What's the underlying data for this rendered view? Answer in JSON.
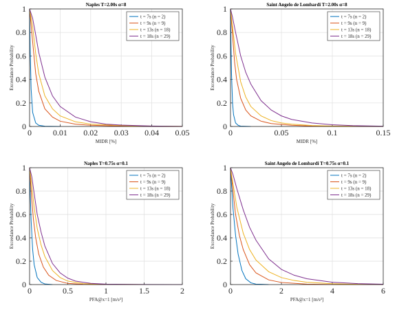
{
  "legend_labels": [
    "t = 7s (n = 2)",
    "t = 9s (n = 9)",
    "t = 13s (n = 18)",
    "t = 18s (n = 29)"
  ],
  "series_colors": [
    "#0072BD",
    "#D95319",
    "#EDB120",
    "#7E2F8E"
  ],
  "chart_data": [
    {
      "type": "line",
      "title": "Naples T=2.00s α=8",
      "xlabel": "MIDR [%]",
      "ylabel": "Exceedance Probability",
      "xlim": [
        0,
        0.05
      ],
      "ylim": [
        0,
        1
      ],
      "xticks": [
        "0",
        "0.01",
        "0.02",
        "0.03",
        "0.04",
        "0.05"
      ],
      "yticks": [
        "0",
        "0.2",
        "0.4",
        "0.6",
        "0.8",
        "1"
      ],
      "grid": true,
      "legend": "top-right",
      "series": [
        {
          "name": "t = 7s (n = 2)",
          "x": [
            0,
            0.0002,
            0.0005,
            0.001,
            0.002,
            0.003,
            0.005,
            0.01
          ],
          "y": [
            1,
            0.65,
            0.32,
            0.12,
            0.03,
            0.01,
            0.002,
            0
          ]
        },
        {
          "name": "t = 9s (n = 9)",
          "x": [
            0,
            0.001,
            0.002,
            0.003,
            0.005,
            0.0075,
            0.01,
            0.015,
            0.02,
            0.03,
            0.05
          ],
          "y": [
            1,
            0.72,
            0.45,
            0.3,
            0.15,
            0.08,
            0.045,
            0.02,
            0.01,
            0.003,
            0
          ]
        },
        {
          "name": "t = 13s (n = 18)",
          "x": [
            0,
            0.001,
            0.002,
            0.003,
            0.005,
            0.0075,
            0.01,
            0.015,
            0.02,
            0.03,
            0.04,
            0.05
          ],
          "y": [
            1,
            0.85,
            0.62,
            0.45,
            0.26,
            0.15,
            0.09,
            0.04,
            0.02,
            0.008,
            0.003,
            0.001
          ]
        },
        {
          "name": "t = 18s (n = 29)",
          "x": [
            0,
            0.001,
            0.002,
            0.003,
            0.005,
            0.0075,
            0.01,
            0.015,
            0.02,
            0.025,
            0.03,
            0.04,
            0.05
          ],
          "y": [
            1,
            0.92,
            0.78,
            0.63,
            0.42,
            0.26,
            0.17,
            0.08,
            0.04,
            0.02,
            0.012,
            0.004,
            0.001
          ]
        }
      ]
    },
    {
      "type": "line",
      "title": "Saint Angelo de Lombardi T=2.00s α=8",
      "xlabel": "MIDR [%]",
      "ylabel": "Exceedance Probability",
      "xlim": [
        0,
        0.15
      ],
      "ylim": [
        0,
        1
      ],
      "xticks": [
        "0",
        "0.05",
        "0.1",
        "0.15"
      ],
      "yticks": [
        "0",
        "0.2",
        "0.4",
        "0.6",
        "0.8",
        "1"
      ],
      "grid": true,
      "legend": "top-right",
      "series": [
        {
          "name": "t = 7s (n = 2)",
          "x": [
            0,
            0.0005,
            0.001,
            0.002,
            0.003,
            0.005,
            0.0075,
            0.01,
            0.02
          ],
          "y": [
            1,
            0.7,
            0.45,
            0.2,
            0.1,
            0.03,
            0.01,
            0.003,
            0
          ]
        },
        {
          "name": "t = 9s (n = 9)",
          "x": [
            0,
            0.002,
            0.004,
            0.006,
            0.01,
            0.015,
            0.02,
            0.03,
            0.04,
            0.06,
            0.08,
            0.1,
            0.15
          ],
          "y": [
            1,
            0.78,
            0.55,
            0.4,
            0.24,
            0.14,
            0.09,
            0.045,
            0.025,
            0.01,
            0.004,
            0.002,
            0
          ]
        },
        {
          "name": "t = 13s (n = 18)",
          "x": [
            0,
            0.002,
            0.005,
            0.01,
            0.015,
            0.02,
            0.03,
            0.04,
            0.05,
            0.06,
            0.08,
            0.1,
            0.15
          ],
          "y": [
            1,
            0.85,
            0.62,
            0.38,
            0.25,
            0.17,
            0.09,
            0.05,
            0.03,
            0.02,
            0.008,
            0.004,
            0
          ]
        },
        {
          "name": "t = 18s (n = 29)",
          "x": [
            0,
            0.002,
            0.005,
            0.01,
            0.015,
            0.02,
            0.03,
            0.04,
            0.05,
            0.06,
            0.08,
            0.1,
            0.12,
            0.15
          ],
          "y": [
            1,
            0.93,
            0.8,
            0.6,
            0.46,
            0.36,
            0.22,
            0.14,
            0.09,
            0.06,
            0.03,
            0.015,
            0.007,
            0.002
          ]
        }
      ]
    },
    {
      "type": "line",
      "title": "Naples T=0.75s α=0.1",
      "xlabel": "PFA@x=1 [m/s²]",
      "ylabel": "Exceedance Probability",
      "xlim": [
        0,
        2
      ],
      "ylim": [
        0,
        1
      ],
      "xticks": [
        "0",
        "0.5",
        "1",
        "1.5",
        "2"
      ],
      "yticks": [
        "0",
        "0.2",
        "0.4",
        "0.6",
        "0.8",
        "1"
      ],
      "grid": true,
      "legend": "top-right",
      "series": [
        {
          "name": "t = 7s (n = 2)",
          "x": [
            0,
            0.01,
            0.02,
            0.04,
            0.06,
            0.1,
            0.15,
            0.2,
            0.3
          ],
          "y": [
            1,
            0.75,
            0.55,
            0.3,
            0.17,
            0.06,
            0.02,
            0.005,
            0
          ]
        },
        {
          "name": "t = 9s (n = 9)",
          "x": [
            0,
            0.02,
            0.05,
            0.08,
            0.12,
            0.18,
            0.25,
            0.35,
            0.5,
            0.7,
            1
          ],
          "y": [
            1,
            0.8,
            0.56,
            0.4,
            0.26,
            0.15,
            0.08,
            0.035,
            0.01,
            0.002,
            0
          ]
        },
        {
          "name": "t = 13s (n = 18)",
          "x": [
            0,
            0.03,
            0.06,
            0.1,
            0.15,
            0.2,
            0.3,
            0.4,
            0.5,
            0.7,
            1,
            1.5
          ],
          "y": [
            1,
            0.84,
            0.66,
            0.48,
            0.34,
            0.24,
            0.12,
            0.06,
            0.03,
            0.008,
            0.002,
            0
          ]
        },
        {
          "name": "t = 18s (n = 29)",
          "x": [
            0,
            0.03,
            0.06,
            0.1,
            0.15,
            0.2,
            0.3,
            0.4,
            0.5,
            0.6,
            0.8,
            1,
            1.5,
            2
          ],
          "y": [
            1,
            0.92,
            0.78,
            0.6,
            0.45,
            0.33,
            0.18,
            0.1,
            0.055,
            0.03,
            0.01,
            0.004,
            0.001,
            0
          ]
        }
      ]
    },
    {
      "type": "line",
      "title": "Saint Angelo de Lombardi T=0.75s α=0.1",
      "xlabel": "PFA@x=1 [m/s²]",
      "ylabel": "Exceedance Probability",
      "xlim": [
        0,
        6
      ],
      "ylim": [
        0,
        1
      ],
      "xticks": [
        "0",
        "2",
        "4",
        "6"
      ],
      "yticks": [
        "0",
        "0.2",
        "0.4",
        "0.6",
        "0.8",
        "1"
      ],
      "grid": true,
      "legend": "top-right",
      "series": [
        {
          "name": "t = 7s (n = 2)",
          "x": [
            0,
            0.05,
            0.1,
            0.2,
            0.3,
            0.45,
            0.6,
            0.8,
            1,
            1.5
          ],
          "y": [
            1,
            0.82,
            0.65,
            0.42,
            0.26,
            0.12,
            0.05,
            0.015,
            0.004,
            0
          ]
        },
        {
          "name": "t = 9s (n = 9)",
          "x": [
            0,
            0.1,
            0.2,
            0.35,
            0.5,
            0.75,
            1,
            1.5,
            2,
            3,
            4,
            6
          ],
          "y": [
            1,
            0.8,
            0.6,
            0.42,
            0.3,
            0.17,
            0.1,
            0.04,
            0.018,
            0.004,
            0.001,
            0
          ]
        },
        {
          "name": "t = 13s (n = 18)",
          "x": [
            0,
            0.1,
            0.25,
            0.5,
            0.75,
            1,
            1.5,
            2,
            2.5,
            3,
            4,
            5,
            6
          ],
          "y": [
            1,
            0.86,
            0.66,
            0.44,
            0.3,
            0.21,
            0.11,
            0.06,
            0.035,
            0.02,
            0.007,
            0.002,
            0
          ]
        },
        {
          "name": "t = 18s (n = 29)",
          "x": [
            0,
            0.1,
            0.25,
            0.5,
            0.75,
            1,
            1.5,
            2,
            2.5,
            3,
            4,
            5,
            6
          ],
          "y": [
            1,
            0.94,
            0.82,
            0.64,
            0.49,
            0.38,
            0.22,
            0.13,
            0.08,
            0.05,
            0.02,
            0.008,
            0.003
          ]
        }
      ]
    }
  ]
}
